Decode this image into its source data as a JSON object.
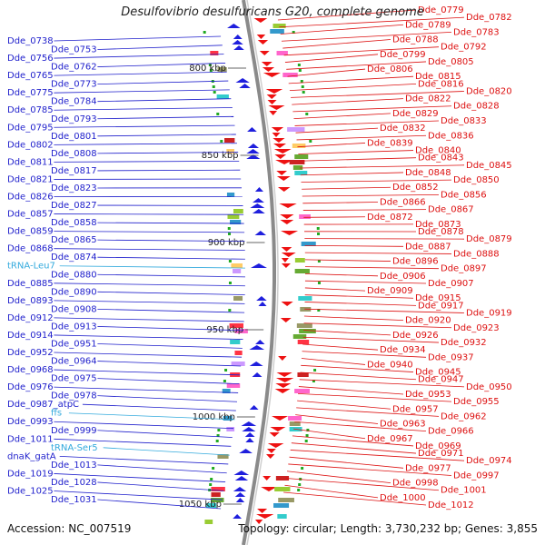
{
  "title": "Desulfovibrio desulfuricans G20, complete genome",
  "accession_label": "Accession: NC_007519",
  "topology_label": "Topology: circular; Length: 3,730,232 bp; Genes: 3,855",
  "colors": {
    "left_labels": "#1f1fcc",
    "right_labels": "#dd1111",
    "rna_labels": "#33aadd",
    "backbone": "#8a8a8a",
    "kbp_tick": "#666666"
  },
  "kbp_marks": [
    {
      "label": "800 kbp"
    },
    {
      "label": "850 kbp"
    },
    {
      "label": "900 kbp"
    },
    {
      "label": "950 kbp"
    },
    {
      "label": "1000 kbp"
    },
    {
      "label": "1050 kbp"
    }
  ],
  "left_labels": [
    {
      "text": "Dde_0738"
    },
    {
      "text": "Dde_0753"
    },
    {
      "text": "Dde_0756"
    },
    {
      "text": "Dde_0762"
    },
    {
      "text": "Dde_0765"
    },
    {
      "text": "Dde_0773"
    },
    {
      "text": "Dde_0775"
    },
    {
      "text": "Dde_0784"
    },
    {
      "text": "Dde_0785"
    },
    {
      "text": "Dde_0793"
    },
    {
      "text": "Dde_0795"
    },
    {
      "text": "Dde_0801"
    },
    {
      "text": "Dde_0802"
    },
    {
      "text": "Dde_0808"
    },
    {
      "text": "Dde_0811"
    },
    {
      "text": "Dde_0817"
    },
    {
      "text": "Dde_0821"
    },
    {
      "text": "Dde_0823"
    },
    {
      "text": "Dde_0826"
    },
    {
      "text": "Dde_0827"
    },
    {
      "text": "Dde_0857"
    },
    {
      "text": "Dde_0858"
    },
    {
      "text": "Dde_0859"
    },
    {
      "text": "Dde_0865"
    },
    {
      "text": "Dde_0868"
    },
    {
      "text": "Dde_0874"
    },
    {
      "text": "tRNA-Leu7",
      "rna": true
    },
    {
      "text": "Dde_0880"
    },
    {
      "text": "Dde_0885"
    },
    {
      "text": "Dde_0890"
    },
    {
      "text": "Dde_0893"
    },
    {
      "text": "Dde_0908"
    },
    {
      "text": "Dde_0912"
    },
    {
      "text": "Dde_0913"
    },
    {
      "text": "Dde_0914"
    },
    {
      "text": "Dde_0951"
    },
    {
      "text": "Dde_0952"
    },
    {
      "text": "Dde_0964"
    },
    {
      "text": "Dde_0968"
    },
    {
      "text": "Dde_0975"
    },
    {
      "text": "Dde_0976"
    },
    {
      "text": "Dde_0978"
    },
    {
      "text": "Dde_0987_atpC"
    },
    {
      "text": "ffs",
      "rna": true
    },
    {
      "text": "Dde_0993"
    },
    {
      "text": "Dde_0999"
    },
    {
      "text": "Dde_1011"
    },
    {
      "text": "tRNA-Ser5",
      "rna": true
    },
    {
      "text": "dnaK_gatA"
    },
    {
      "text": "Dde_1013"
    },
    {
      "text": "Dde_1019"
    },
    {
      "text": "Dde_1028"
    },
    {
      "text": "Dde_1025"
    },
    {
      "text": "Dde_1031"
    }
  ],
  "right_labels": [
    {
      "text": "Dde_0779"
    },
    {
      "text": "Dde_0782"
    },
    {
      "text": "Dde_0789"
    },
    {
      "text": "Dde_0783"
    },
    {
      "text": "Dde_0788"
    },
    {
      "text": "Dde_0792"
    },
    {
      "text": "Dde_0799"
    },
    {
      "text": "Dde_0805"
    },
    {
      "text": "Dde_0806"
    },
    {
      "text": "Dde_0815"
    },
    {
      "text": "Dde_0816"
    },
    {
      "text": "Dde_0820"
    },
    {
      "text": "Dde_0822"
    },
    {
      "text": "Dde_0828"
    },
    {
      "text": "Dde_0829"
    },
    {
      "text": "Dde_0833"
    },
    {
      "text": "Dde_0832"
    },
    {
      "text": "Dde_0836"
    },
    {
      "text": "Dde_0839"
    },
    {
      "text": "Dde_0840"
    },
    {
      "text": "Dde_0843"
    },
    {
      "text": "Dde_0845"
    },
    {
      "text": "Dde_0848"
    },
    {
      "text": "Dde_0850"
    },
    {
      "text": "Dde_0852"
    },
    {
      "text": "Dde_0856"
    },
    {
      "text": "Dde_0866"
    },
    {
      "text": "Dde_0867"
    },
    {
      "text": "Dde_0872"
    },
    {
      "text": "Dde_0873"
    },
    {
      "text": "Dde_0878"
    },
    {
      "text": "Dde_0879"
    },
    {
      "text": "Dde_0887"
    },
    {
      "text": "Dde_0888"
    },
    {
      "text": "Dde_0896"
    },
    {
      "text": "Dde_0897"
    },
    {
      "text": "Dde_0906"
    },
    {
      "text": "Dde_0907"
    },
    {
      "text": "Dde_0909"
    },
    {
      "text": "Dde_0915"
    },
    {
      "text": "Dde_0917"
    },
    {
      "text": "Dde_0919"
    },
    {
      "text": "Dde_0920"
    },
    {
      "text": "Dde_0923"
    },
    {
      "text": "Dde_0926"
    },
    {
      "text": "Dde_0932"
    },
    {
      "text": "Dde_0934"
    },
    {
      "text": "Dde_0937"
    },
    {
      "text": "Dde_0940"
    },
    {
      "text": "Dde_0945"
    },
    {
      "text": "Dde_0947"
    },
    {
      "text": "Dde_0950"
    },
    {
      "text": "Dde_0953"
    },
    {
      "text": "Dde_0955"
    },
    {
      "text": "Dde_0957"
    },
    {
      "text": "Dde_0962"
    },
    {
      "text": "Dde_0963"
    },
    {
      "text": "Dde_0966"
    },
    {
      "text": "Dde_0967"
    },
    {
      "text": "Dde_0969"
    },
    {
      "text": "Dde_0971"
    },
    {
      "text": "Dde_0974"
    },
    {
      "text": "Dde_0977"
    },
    {
      "text": "Dde_0997"
    },
    {
      "text": "Dde_0998"
    },
    {
      "text": "Dde_1001"
    },
    {
      "text": "Dde_1000"
    },
    {
      "text": "Dde_1012"
    }
  ]
}
